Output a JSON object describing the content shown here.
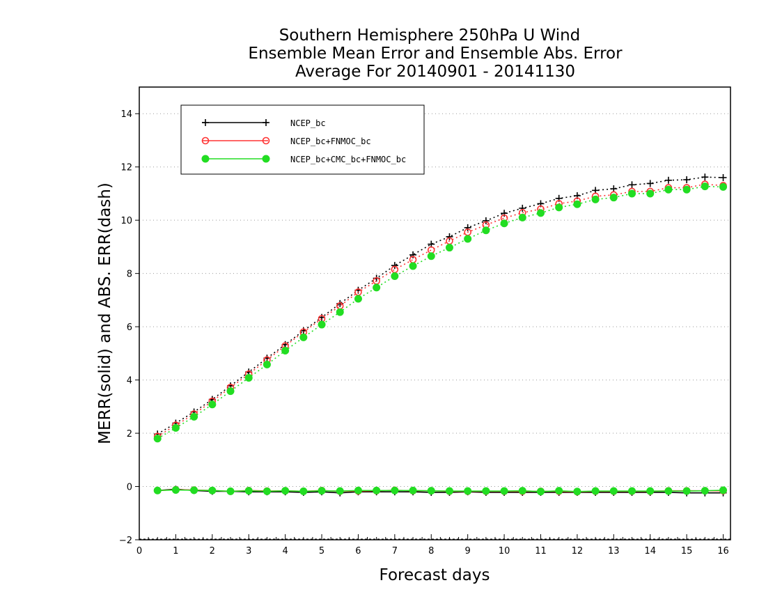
{
  "chart_data": {
    "type": "line",
    "title": [
      "Southern Hemisphere 250hPa U Wind",
      "Ensemble Mean Error and Ensemble Abs. Error",
      "Average For 20140901 - 20141130"
    ],
    "xlabel": "Forecast days",
    "ylabel": "MERR(solid) and ABS. ERR(dash)",
    "xlim": [
      0,
      16.2
    ],
    "ylim": [
      -2,
      15
    ],
    "xticks": [
      0,
      1,
      2,
      3,
      4,
      5,
      6,
      7,
      8,
      9,
      10,
      11,
      12,
      13,
      14,
      15,
      16
    ],
    "yticks": [
      -2,
      0,
      2,
      4,
      6,
      8,
      10,
      12,
      14
    ],
    "grid": "horizontal dotted",
    "legend_position": "top-left",
    "x": [
      0.5,
      1,
      1.5,
      2,
      2.5,
      3,
      3.5,
      4,
      4.5,
      5,
      5.5,
      6,
      6.5,
      7,
      7.5,
      8,
      8.5,
      9,
      9.5,
      10,
      10.5,
      11,
      11.5,
      12,
      12.5,
      13,
      13.5,
      14,
      14.5,
      15,
      15.5,
      16
    ],
    "series": [
      {
        "name": "NCEP_bc",
        "color": "#000000",
        "marker": "plus",
        "abs_err": [
          1.97,
          2.38,
          2.8,
          3.27,
          3.78,
          4.3,
          4.82,
          5.33,
          5.85,
          6.35,
          6.87,
          7.37,
          7.82,
          8.3,
          8.7,
          9.1,
          9.38,
          9.72,
          9.98,
          10.26,
          10.45,
          10.62,
          10.82,
          10.92,
          11.12,
          11.18,
          11.33,
          11.38,
          11.5,
          11.52,
          11.62,
          11.6
        ],
        "mean_err": [
          -0.15,
          -0.1,
          -0.15,
          -0.18,
          -0.18,
          -0.2,
          -0.2,
          -0.2,
          -0.22,
          -0.2,
          -0.24,
          -0.2,
          -0.2,
          -0.2,
          -0.2,
          -0.22,
          -0.22,
          -0.2,
          -0.22,
          -0.22,
          -0.22,
          -0.22,
          -0.22,
          -0.22,
          -0.22,
          -0.22,
          -0.22,
          -0.22,
          -0.22,
          -0.24,
          -0.24,
          -0.24
        ]
      },
      {
        "name": "NCEP_bc+FNMOC_bc",
        "color": "#ff3333",
        "marker": "open-circle",
        "abs_err": [
          1.88,
          2.3,
          2.72,
          3.2,
          3.72,
          4.22,
          4.75,
          5.28,
          5.8,
          6.3,
          6.78,
          7.3,
          7.72,
          8.15,
          8.52,
          8.88,
          9.22,
          9.55,
          9.82,
          10.08,
          10.28,
          10.42,
          10.62,
          10.72,
          10.9,
          10.95,
          11.08,
          11.08,
          11.22,
          11.22,
          11.35,
          11.3
        ],
        "mean_err": [
          -0.15,
          -0.12,
          -0.13,
          -0.15,
          -0.18,
          -0.15,
          -0.17,
          -0.16,
          -0.18,
          -0.15,
          -0.18,
          -0.17,
          -0.16,
          -0.14,
          -0.16,
          -0.16,
          -0.18,
          -0.18,
          -0.18,
          -0.18,
          -0.18,
          -0.18,
          -0.18,
          -0.2,
          -0.18,
          -0.18,
          -0.18,
          -0.18,
          -0.16,
          -0.16,
          -0.16,
          -0.16
        ]
      },
      {
        "name": "NCEP_bc+CMC_bc+FNMOC_bc",
        "color": "#22dd22",
        "marker": "filled-circle",
        "abs_err": [
          1.8,
          2.2,
          2.62,
          3.08,
          3.58,
          4.08,
          4.58,
          5.1,
          5.6,
          6.08,
          6.55,
          7.05,
          7.47,
          7.9,
          8.28,
          8.65,
          8.97,
          9.3,
          9.62,
          9.88,
          10.1,
          10.27,
          10.48,
          10.6,
          10.78,
          10.85,
          11.0,
          11.0,
          11.15,
          11.15,
          11.27,
          11.25
        ],
        "mean_err": [
          -0.15,
          -0.13,
          -0.14,
          -0.15,
          -0.18,
          -0.16,
          -0.18,
          -0.16,
          -0.18,
          -0.16,
          -0.17,
          -0.15,
          -0.15,
          -0.15,
          -0.15,
          -0.16,
          -0.17,
          -0.17,
          -0.17,
          -0.17,
          -0.16,
          -0.19,
          -0.16,
          -0.19,
          -0.17,
          -0.17,
          -0.17,
          -0.17,
          -0.17,
          -0.17,
          -0.16,
          -0.14
        ]
      }
    ]
  }
}
